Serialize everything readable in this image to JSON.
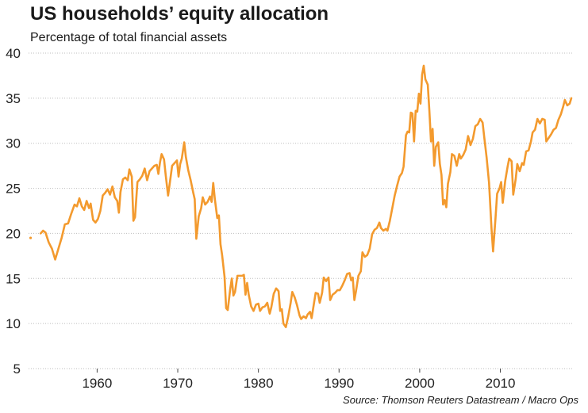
{
  "header": {
    "title": "US households’ equity allocation",
    "subtitle": "Percentage of total financial assets"
  },
  "footer": {
    "source": "Source: Thomson Reuters Datastream / Macro Ops"
  },
  "colors": {
    "line": "#f39a2e",
    "grid": "#bdbdbd",
    "text": "#1a1a1a"
  },
  "chart_data": {
    "type": "line",
    "title": "US households’ equity allocation",
    "subtitle": "Percentage of total financial assets",
    "xlabel": "",
    "ylabel": "",
    "xlim": [
      1951.5,
      2019
    ],
    "ylim": [
      5,
      40
    ],
    "yticks": [
      5,
      10,
      15,
      20,
      25,
      30,
      35,
      40
    ],
    "xticks": [
      1960,
      1970,
      1980,
      1990,
      2000,
      2010
    ],
    "grid": "horizontal dotted",
    "legend": "none",
    "series": [
      {
        "color": "#f39a2e",
        "points": [
          [
            1951.75,
            19.5
          ],
          [
            1953.0,
            20.0
          ],
          [
            1953.3,
            20.3
          ],
          [
            1953.6,
            20.1
          ],
          [
            1954.0,
            19.0
          ],
          [
            1954.4,
            18.3
          ],
          [
            1954.8,
            17.1
          ],
          [
            1955.2,
            18.3
          ],
          [
            1955.6,
            19.5
          ],
          [
            1956.0,
            21.0
          ],
          [
            1956.4,
            21.1
          ],
          [
            1956.8,
            22.2
          ],
          [
            1957.2,
            23.2
          ],
          [
            1957.5,
            23.0
          ],
          [
            1957.8,
            23.9
          ],
          [
            1958.1,
            23.0
          ],
          [
            1958.4,
            22.6
          ],
          [
            1958.7,
            23.6
          ],
          [
            1959.0,
            22.8
          ],
          [
            1959.2,
            23.3
          ],
          [
            1959.5,
            21.5
          ],
          [
            1959.8,
            21.2
          ],
          [
            1960.1,
            21.6
          ],
          [
            1960.4,
            22.5
          ],
          [
            1960.7,
            24.2
          ],
          [
            1961.0,
            24.5
          ],
          [
            1961.3,
            24.9
          ],
          [
            1961.6,
            24.3
          ],
          [
            1961.9,
            25.2
          ],
          [
            1962.2,
            24.0
          ],
          [
            1962.5,
            23.6
          ],
          [
            1962.7,
            22.3
          ],
          [
            1962.9,
            24.6
          ],
          [
            1963.2,
            26.0
          ],
          [
            1963.5,
            26.2
          ],
          [
            1963.8,
            25.9
          ],
          [
            1964.0,
            27.1
          ],
          [
            1964.3,
            26.3
          ],
          [
            1964.5,
            21.4
          ],
          [
            1964.7,
            21.8
          ],
          [
            1965.0,
            25.7
          ],
          [
            1965.3,
            26.0
          ],
          [
            1965.6,
            26.4
          ],
          [
            1965.9,
            27.2
          ],
          [
            1966.2,
            25.9
          ],
          [
            1966.5,
            26.9
          ],
          [
            1966.8,
            27.2
          ],
          [
            1967.1,
            27.5
          ],
          [
            1967.4,
            27.6
          ],
          [
            1967.6,
            26.6
          ],
          [
            1967.8,
            27.9
          ],
          [
            1968.0,
            28.8
          ],
          [
            1968.3,
            28.2
          ],
          [
            1968.5,
            26.5
          ],
          [
            1968.8,
            24.2
          ],
          [
            1969.0,
            25.5
          ],
          [
            1969.3,
            27.5
          ],
          [
            1969.6,
            27.8
          ],
          [
            1969.9,
            28.1
          ],
          [
            1970.1,
            26.3
          ],
          [
            1970.3,
            27.7
          ],
          [
            1970.5,
            28.3
          ],
          [
            1970.8,
            30.1
          ],
          [
            1971.0,
            28.5
          ],
          [
            1971.3,
            27.0
          ],
          [
            1971.6,
            25.9
          ],
          [
            1971.9,
            24.6
          ],
          [
            1972.1,
            23.8
          ],
          [
            1972.3,
            19.4
          ],
          [
            1972.6,
            21.9
          ],
          [
            1972.9,
            22.8
          ],
          [
            1973.1,
            24.0
          ],
          [
            1973.4,
            23.2
          ],
          [
            1973.7,
            23.5
          ],
          [
            1974.0,
            24.1
          ],
          [
            1974.2,
            23.5
          ],
          [
            1974.4,
            25.6
          ],
          [
            1974.6,
            23.8
          ],
          [
            1974.9,
            21.7
          ],
          [
            1975.1,
            22.0
          ],
          [
            1975.3,
            18.8
          ],
          [
            1975.5,
            17.6
          ],
          [
            1975.8,
            15.2
          ],
          [
            1976.0,
            11.7
          ],
          [
            1976.2,
            11.5
          ],
          [
            1976.5,
            13.8
          ],
          [
            1976.7,
            15.0
          ],
          [
            1976.9,
            13.1
          ],
          [
            1977.1,
            13.5
          ],
          [
            1977.4,
            15.3
          ],
          [
            1977.7,
            15.3
          ],
          [
            1978.0,
            15.3
          ],
          [
            1978.2,
            15.4
          ],
          [
            1978.4,
            13.2
          ],
          [
            1978.6,
            14.5
          ],
          [
            1978.8,
            13.2
          ],
          [
            1979.1,
            11.9
          ],
          [
            1979.4,
            11.4
          ],
          [
            1979.7,
            12.1
          ],
          [
            1980.0,
            12.2
          ],
          [
            1980.2,
            11.4
          ],
          [
            1980.5,
            11.8
          ],
          [
            1980.8,
            11.9
          ],
          [
            1981.1,
            12.3
          ],
          [
            1981.4,
            11.1
          ],
          [
            1981.6,
            11.8
          ],
          [
            1981.9,
            13.3
          ],
          [
            1982.2,
            13.9
          ],
          [
            1982.5,
            13.6
          ],
          [
            1982.7,
            11.4
          ],
          [
            1982.9,
            11.6
          ],
          [
            1983.1,
            10.0
          ],
          [
            1983.4,
            9.6
          ],
          [
            1983.7,
            10.8
          ],
          [
            1984.0,
            12.3
          ],
          [
            1984.2,
            13.5
          ],
          [
            1984.5,
            12.9
          ],
          [
            1984.8,
            12.0
          ],
          [
            1985.1,
            10.9
          ],
          [
            1985.3,
            10.5
          ],
          [
            1985.6,
            10.8
          ],
          [
            1985.9,
            10.6
          ],
          [
            1986.1,
            11.0
          ],
          [
            1986.4,
            11.3
          ],
          [
            1986.6,
            10.6
          ],
          [
            1986.9,
            12.3
          ],
          [
            1987.1,
            13.4
          ],
          [
            1987.4,
            13.3
          ],
          [
            1987.6,
            12.3
          ],
          [
            1987.9,
            13.4
          ],
          [
            1988.1,
            15.1
          ],
          [
            1988.4,
            14.7
          ],
          [
            1988.7,
            15.1
          ],
          [
            1988.9,
            12.6
          ],
          [
            1989.2,
            13.2
          ],
          [
            1989.5,
            13.4
          ],
          [
            1989.8,
            13.7
          ],
          [
            1990.1,
            13.7
          ],
          [
            1990.4,
            14.2
          ],
          [
            1990.7,
            14.8
          ],
          [
            1991.0,
            15.5
          ],
          [
            1991.3,
            15.6
          ],
          [
            1991.5,
            14.8
          ],
          [
            1991.7,
            15.1
          ],
          [
            1991.9,
            12.6
          ],
          [
            1992.1,
            13.6
          ],
          [
            1992.4,
            15.3
          ],
          [
            1992.7,
            15.8
          ],
          [
            1992.9,
            17.9
          ],
          [
            1993.2,
            17.4
          ],
          [
            1993.5,
            17.6
          ],
          [
            1993.8,
            18.3
          ],
          [
            1994.1,
            19.9
          ],
          [
            1994.4,
            20.4
          ],
          [
            1994.7,
            20.6
          ],
          [
            1995.0,
            21.2
          ],
          [
            1995.2,
            20.6
          ],
          [
            1995.5,
            20.3
          ],
          [
            1995.8,
            20.5
          ],
          [
            1996.0,
            20.3
          ],
          [
            1996.3,
            21.4
          ],
          [
            1996.6,
            22.8
          ],
          [
            1996.9,
            24.2
          ],
          [
            1997.2,
            25.3
          ],
          [
            1997.5,
            26.3
          ],
          [
            1997.8,
            26.7
          ],
          [
            1998.0,
            27.4
          ],
          [
            1998.3,
            30.9
          ],
          [
            1998.5,
            31.3
          ],
          [
            1998.7,
            31.2
          ],
          [
            1998.9,
            33.4
          ],
          [
            1999.1,
            33.3
          ],
          [
            1999.3,
            30.2
          ],
          [
            1999.5,
            33.6
          ],
          [
            1999.7,
            33.5
          ],
          [
            1999.9,
            35.5
          ],
          [
            2000.1,
            34.4
          ],
          [
            2000.3,
            37.6
          ],
          [
            2000.5,
            38.6
          ],
          [
            2000.7,
            37.1
          ],
          [
            2001.0,
            36.5
          ],
          [
            2001.2,
            33.6
          ],
          [
            2001.4,
            30.2
          ],
          [
            2001.6,
            31.6
          ],
          [
            2001.8,
            27.5
          ],
          [
            2002.0,
            29.6
          ],
          [
            2002.3,
            30.1
          ],
          [
            2002.5,
            27.7
          ],
          [
            2002.7,
            26.5
          ],
          [
            2002.9,
            23.2
          ],
          [
            2003.1,
            23.7
          ],
          [
            2003.3,
            22.9
          ],
          [
            2003.5,
            25.5
          ],
          [
            2003.8,
            26.8
          ],
          [
            2004.0,
            28.8
          ],
          [
            2004.3,
            28.6
          ],
          [
            2004.6,
            27.5
          ],
          [
            2004.9,
            28.8
          ],
          [
            2005.1,
            28.3
          ],
          [
            2005.4,
            28.7
          ],
          [
            2005.7,
            29.3
          ],
          [
            2006.0,
            30.8
          ],
          [
            2006.3,
            29.8
          ],
          [
            2006.6,
            30.5
          ],
          [
            2006.9,
            31.9
          ],
          [
            2007.2,
            32.1
          ],
          [
            2007.5,
            32.7
          ],
          [
            2007.8,
            32.3
          ],
          [
            2008.0,
            30.7
          ],
          [
            2008.3,
            28.4
          ],
          [
            2008.6,
            25.6
          ],
          [
            2008.9,
            20.6
          ],
          [
            2009.1,
            18.0
          ],
          [
            2009.4,
            21.7
          ],
          [
            2009.6,
            24.4
          ],
          [
            2009.9,
            25.0
          ],
          [
            2010.1,
            25.7
          ],
          [
            2010.3,
            23.4
          ],
          [
            2010.6,
            25.8
          ],
          [
            2010.9,
            27.4
          ],
          [
            2011.1,
            28.3
          ],
          [
            2011.4,
            28.0
          ],
          [
            2011.6,
            24.3
          ],
          [
            2011.9,
            26.0
          ],
          [
            2012.1,
            27.7
          ],
          [
            2012.4,
            26.9
          ],
          [
            2012.7,
            27.8
          ],
          [
            2012.9,
            27.6
          ],
          [
            2013.2,
            29.1
          ],
          [
            2013.5,
            29.2
          ],
          [
            2013.8,
            30.2
          ],
          [
            2014.0,
            31.2
          ],
          [
            2014.3,
            31.5
          ],
          [
            2014.6,
            32.7
          ],
          [
            2014.9,
            32.2
          ],
          [
            2015.2,
            32.7
          ],
          [
            2015.5,
            32.6
          ],
          [
            2015.7,
            30.2
          ],
          [
            2016.0,
            30.6
          ],
          [
            2016.3,
            31.0
          ],
          [
            2016.6,
            31.5
          ],
          [
            2016.9,
            31.7
          ],
          [
            2017.2,
            32.6
          ],
          [
            2017.5,
            33.2
          ],
          [
            2017.8,
            34.1
          ],
          [
            2018.0,
            34.8
          ],
          [
            2018.3,
            34.2
          ],
          [
            2018.6,
            34.4
          ],
          [
            2018.8,
            35.0
          ]
        ]
      }
    ]
  }
}
